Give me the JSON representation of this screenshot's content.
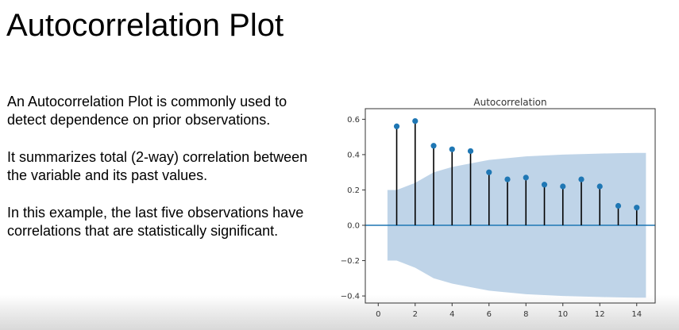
{
  "slide": {
    "title": "Autocorrelation Plot",
    "paragraphs": [
      "An Autocorrelation Plot is commonly used to detect dependence on prior observations.",
      "It summarizes total (2-way) correlation between the variable and its past values.",
      "In this example, the last five observations have correlations that are statistically significant."
    ]
  },
  "chart_data": {
    "type": "scatter",
    "style": "stem",
    "title": "Autocorrelation",
    "xlabel": "",
    "ylabel": "",
    "xlim": [
      -0.7,
      15.0
    ],
    "ylim": [
      -0.44,
      0.66
    ],
    "xticks": [
      0,
      2,
      4,
      6,
      8,
      10,
      12,
      14
    ],
    "xtick_labels": [
      "0",
      "2",
      "4",
      "6",
      "8",
      "10",
      "12",
      "14"
    ],
    "yticks": [
      0.6,
      0.4,
      0.2,
      0.0,
      -0.2,
      -0.4
    ],
    "ytick_labels": [
      "0.6",
      "0.4",
      "0.2",
      "0.0",
      "−0.2",
      "−0.4"
    ],
    "lags": [
      1,
      2,
      3,
      4,
      5,
      6,
      7,
      8,
      9,
      10,
      11,
      12,
      13,
      14
    ],
    "values": [
      0.56,
      0.59,
      0.45,
      0.43,
      0.42,
      0.3,
      0.26,
      0.27,
      0.23,
      0.22,
      0.26,
      0.22,
      0.11,
      0.1
    ],
    "confidence_band": {
      "x": [
        0.5,
        1,
        2,
        3,
        4,
        5,
        6,
        7,
        8,
        9,
        10,
        11,
        12,
        13,
        14,
        14.5
      ],
      "upper": [
        0.2,
        0.2,
        0.24,
        0.3,
        0.33,
        0.35,
        0.37,
        0.38,
        0.39,
        0.395,
        0.4,
        0.403,
        0.406,
        0.408,
        0.41,
        0.41
      ],
      "lower": [
        -0.2,
        -0.2,
        -0.24,
        -0.3,
        -0.33,
        -0.35,
        -0.37,
        -0.38,
        -0.39,
        -0.395,
        -0.4,
        -0.403,
        -0.406,
        -0.408,
        -0.41,
        -0.41
      ]
    },
    "grid": false,
    "colors": {
      "points": "#1f77b4",
      "stems": "#000000",
      "zero_line": "#1f77b4",
      "band": "#b8cfe6"
    }
  }
}
